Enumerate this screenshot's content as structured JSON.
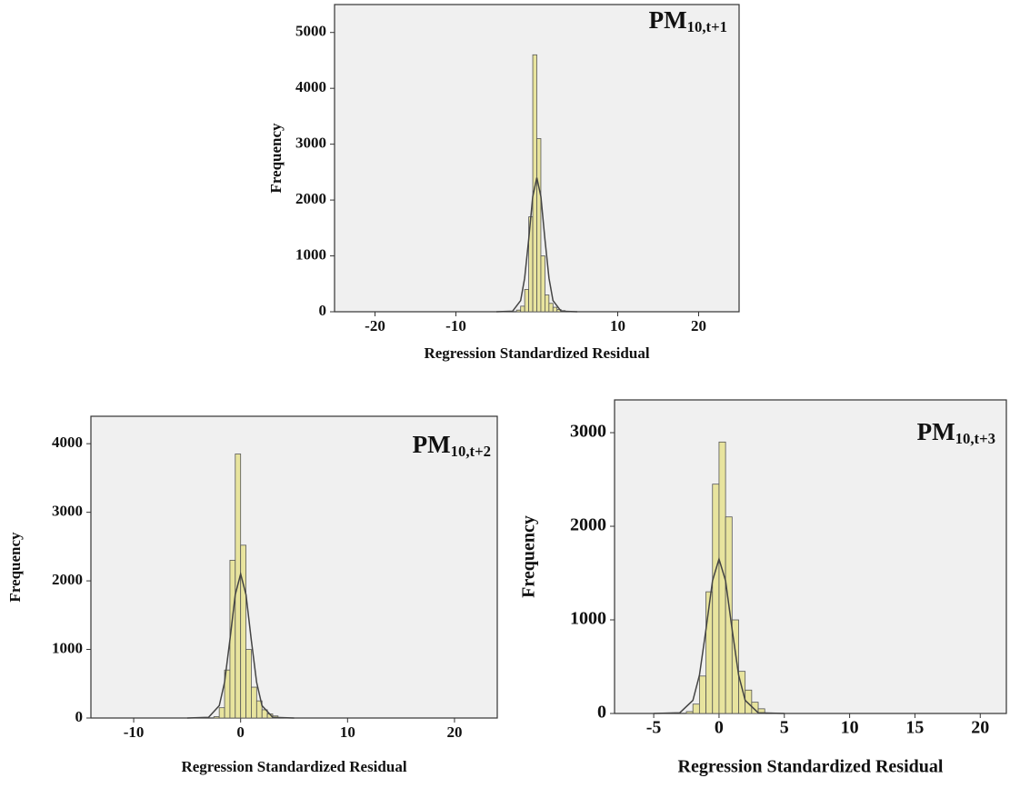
{
  "chart_data": [
    {
      "type": "histogram",
      "title": "PM",
      "title_sub": "10,t+1",
      "xlabel": "Regression Standardized Residual",
      "ylabel": "Frequency",
      "bins": [
        -2.5,
        -2,
        -1.5,
        -1,
        -0.5,
        0,
        0.5,
        1,
        1.5,
        2,
        2.5,
        3,
        3.5
      ],
      "values": [
        30,
        100,
        400,
        1700,
        4600,
        3100,
        1000,
        300,
        150,
        80,
        40,
        20
      ],
      "color": "#e8e49e",
      "curve_x": [
        -5,
        -3,
        -2,
        -1.5,
        -1,
        -0.5,
        0,
        0.5,
        1,
        1.5,
        2,
        3,
        5
      ],
      "curve_y": [
        0,
        10,
        200,
        600,
        1300,
        2060,
        2400,
        2060,
        1300,
        600,
        200,
        10,
        0
      ],
      "curve_color": "#444444",
      "xlim": [
        -25,
        25
      ],
      "xticks": [
        -20,
        -10,
        10,
        20
      ],
      "ylim": [
        0,
        5500
      ],
      "yticks": [
        0,
        1000,
        2000,
        3000,
        4000,
        5000
      ]
    },
    {
      "type": "histogram",
      "title": "PM",
      "title_sub": "10,t+2",
      "xlabel": "Regression Standardized Residual",
      "ylabel": "Frequency",
      "bins": [
        -2.5,
        -2,
        -1.5,
        -1,
        -0.5,
        0,
        0.5,
        1,
        1.5,
        2,
        2.5,
        3,
        3.5
      ],
      "values": [
        20,
        150,
        700,
        2300,
        3850,
        2520,
        1000,
        450,
        250,
        120,
        60,
        30
      ],
      "color": "#e8e49e",
      "curve_x": [
        -5,
        -3,
        -2,
        -1.5,
        -1,
        -0.5,
        0,
        0.5,
        1,
        1.5,
        2,
        3,
        5
      ],
      "curve_y": [
        0,
        10,
        180,
        520,
        1140,
        1800,
        2100,
        1800,
        1140,
        520,
        180,
        10,
        0
      ],
      "curve_color": "#444444",
      "xlim": [
        -14,
        24
      ],
      "xticks": [
        -10,
        0,
        10,
        20
      ],
      "ylim": [
        0,
        4400
      ],
      "yticks": [
        0,
        1000,
        2000,
        3000,
        4000
      ]
    },
    {
      "type": "histogram",
      "title": "PM",
      "title_sub": "10,t+3",
      "xlabel": "Regression Standardized Residual",
      "ylabel": "Frequency",
      "bins": [
        -2.5,
        -2,
        -1.5,
        -1,
        -0.5,
        0,
        0.5,
        1,
        1.5,
        2,
        2.5,
        3,
        3.5
      ],
      "values": [
        20,
        100,
        400,
        1300,
        2450,
        2900,
        2100,
        1000,
        450,
        250,
        120,
        50
      ],
      "color": "#e8e49e",
      "curve_x": [
        -5,
        -3,
        -2,
        -1.5,
        -1,
        -0.5,
        0,
        0.5,
        1,
        1.5,
        2,
        3,
        5
      ],
      "curve_y": [
        0,
        8,
        140,
        410,
        900,
        1420,
        1650,
        1420,
        900,
        410,
        140,
        8,
        0
      ],
      "curve_color": "#444444",
      "xlim": [
        -8,
        22
      ],
      "xticks": [
        -5,
        0,
        5,
        10,
        15,
        20
      ],
      "ylim": [
        0,
        3350
      ],
      "yticks": [
        0,
        1000,
        2000,
        3000
      ]
    }
  ]
}
